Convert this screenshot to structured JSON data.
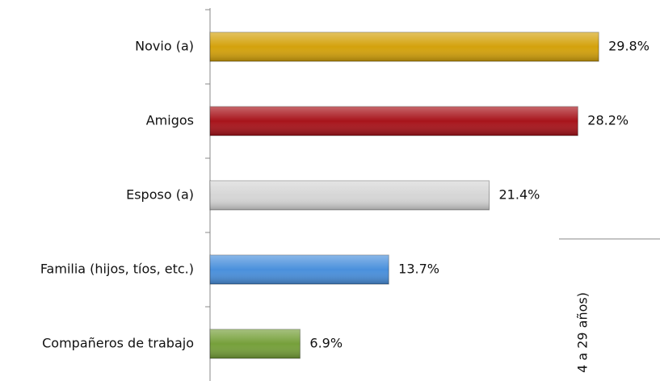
{
  "chart_data": {
    "type": "bar",
    "orientation": "horizontal",
    "categories": [
      "Novio (a)",
      "Amigos",
      "Esposo (a)",
      "Familia (hijos, tíos, etc.)",
      "Compañeros de trabajo"
    ],
    "values": [
      29.8,
      28.2,
      21.4,
      13.7,
      6.9
    ],
    "value_labels": [
      "29.8%",
      "28.2%",
      "21.4%",
      "13.7%",
      "6.9%"
    ],
    "colors": [
      "#d4a20c",
      "#a8141b",
      "#d6d6d6",
      "#4a90dc",
      "#76a03a"
    ],
    "xlim": [
      0,
      34.5
    ],
    "annotation": "4 a 29 años)"
  }
}
